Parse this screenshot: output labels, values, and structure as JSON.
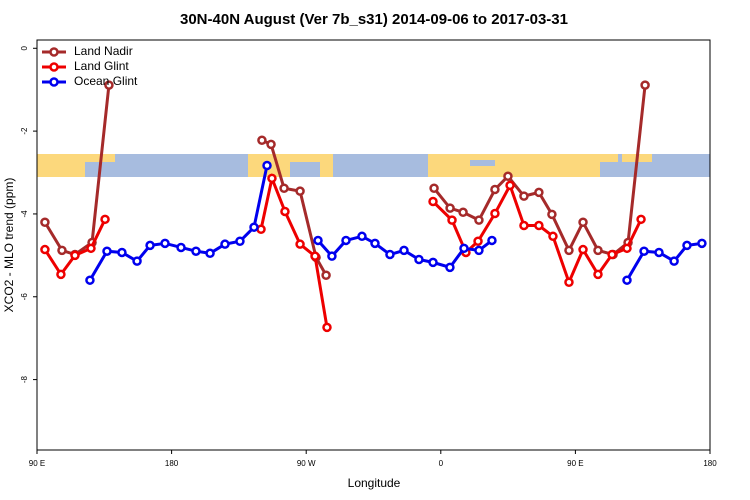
{
  "chart_data": {
    "type": "line",
    "title": "30N-40N August (Ver 7b_s31)   2014-09-06 to 2017-03-31",
    "xlabel": "Longitude",
    "ylabel": "XCO2 - MLO trend (ppm)",
    "xlim": [
      90,
      540
    ],
    "ylim": [
      -9.7,
      0.2
    ],
    "xticks": [
      {
        "value": 90,
        "label": "90 E"
      },
      {
        "value": 180,
        "label": "180"
      },
      {
        "value": 270,
        "label": "90 W"
      },
      {
        "value": 360,
        "label": "0"
      },
      {
        "value": 450,
        "label": "90 E"
      },
      {
        "value": 540,
        "label": "180"
      }
    ],
    "yticks": [
      0,
      -2,
      -4,
      -6,
      -8
    ],
    "legend": "top-left",
    "series": [
      {
        "name": "Land Nadir",
        "color": "#a52a2a",
        "x": [
          95.3,
          106.7,
          115.4,
          126.8,
          138.1,
          null,
          240.4,
          246.5,
          255.2,
          265.9,
          276.6,
          283.3,
          null,
          355.5,
          366.2,
          374.9,
          385.5,
          396.2,
          404.9,
          415.6,
          425.6,
          434.3,
          445.7,
          455.1,
          465.1,
          475.2,
          485.2,
          496.6
        ],
        "values": [
          -4.2,
          -4.88,
          -4.98,
          -4.69,
          -0.89,
          null,
          -2.22,
          -2.32,
          -3.38,
          -3.45,
          -5.05,
          -5.48,
          null,
          -3.38,
          -3.86,
          -3.96,
          -4.15,
          -3.41,
          -3.09,
          -3.57,
          -3.48,
          -4.01,
          -4.88,
          -4.2,
          -4.88,
          -4.98,
          -4.69,
          -0.89
        ]
      },
      {
        "name": "Land Glint",
        "color": "#ee0000",
        "x": [
          95.3,
          106.0,
          115.4,
          126.1,
          135.5,
          null,
          239.8,
          247.1,
          255.8,
          265.9,
          275.9,
          283.9,
          null,
          354.8,
          367.5,
          376.8,
          384.9,
          396.2,
          406.3,
          415.6,
          425.6,
          435.0,
          445.7,
          455.1,
          465.1,
          474.5,
          484.5,
          493.9
        ],
        "values": [
          -4.86,
          -5.46,
          -5.0,
          -4.83,
          -4.13,
          null,
          -4.37,
          -3.14,
          -3.94,
          -4.73,
          -5.02,
          -6.74,
          null,
          -3.7,
          -4.15,
          -4.93,
          -4.66,
          -3.99,
          -3.31,
          -4.28,
          -4.28,
          -4.54,
          -5.65,
          -4.86,
          -5.46,
          -4.98,
          -4.83,
          -4.13
        ]
      },
      {
        "name": "Ocean Glint",
        "color": "#0000ee",
        "x": [
          125.4,
          136.8,
          146.8,
          156.9,
          165.6,
          175.6,
          186.3,
          196.3,
          205.7,
          215.7,
          225.7,
          235.1,
          243.8,
          null,
          277.9,
          287.2,
          296.6,
          307.3,
          316.0,
          326.0,
          335.4,
          345.4,
          354.8,
          366.1,
          375.5,
          385.5,
          394.2,
          null,
          484.5,
          495.9,
          505.9,
          516.0,
          524.6,
          534.6
        ],
        "values": [
          -5.6,
          -4.9,
          -4.93,
          -5.14,
          -4.76,
          -4.71,
          -4.81,
          -4.9,
          -4.95,
          -4.73,
          -4.66,
          -4.32,
          -2.83,
          null,
          -4.64,
          -5.02,
          -4.64,
          -4.54,
          -4.71,
          -4.98,
          -4.88,
          -5.1,
          -5.17,
          -5.29,
          -4.83,
          -4.88,
          -4.64,
          null,
          -5.6,
          -4.9,
          -4.93,
          -5.14,
          -4.76,
          -4.71
        ]
      }
    ]
  }
}
